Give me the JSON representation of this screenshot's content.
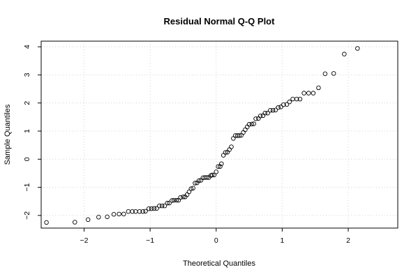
{
  "chart_data": {
    "type": "scatter",
    "title": "Residual Normal Q-Q Plot",
    "xlabel": "Theoretical Quantiles",
    "ylabel": "Sample Quantiles",
    "xlim": [
      -2.65,
      2.75
    ],
    "ylim": [
      -2.45,
      4.2
    ],
    "xticks": [
      -2,
      -1,
      0,
      1,
      2
    ],
    "yticks": [
      -2,
      -1,
      0,
      1,
      2,
      3,
      4
    ],
    "grid": true,
    "marker": "open-circle",
    "points": [
      [
        -2.57,
        -2.25
      ],
      [
        -2.14,
        -2.24
      ],
      [
        -1.94,
        -2.15
      ],
      [
        -1.78,
        -2.06
      ],
      [
        -1.65,
        -2.05
      ],
      [
        -1.55,
        -1.96
      ],
      [
        -1.47,
        -1.95
      ],
      [
        -1.4,
        -1.95
      ],
      [
        -1.33,
        -1.86
      ],
      [
        -1.27,
        -1.86
      ],
      [
        -1.22,
        -1.86
      ],
      [
        -1.16,
        -1.86
      ],
      [
        -1.11,
        -1.86
      ],
      [
        -1.07,
        -1.85
      ],
      [
        -1.02,
        -1.76
      ],
      [
        -0.98,
        -1.76
      ],
      [
        -0.94,
        -1.75
      ],
      [
        -0.9,
        -1.75
      ],
      [
        -0.86,
        -1.66
      ],
      [
        -0.82,
        -1.66
      ],
      [
        -0.78,
        -1.66
      ],
      [
        -0.74,
        -1.56
      ],
      [
        -0.71,
        -1.56
      ],
      [
        -0.67,
        -1.47
      ],
      [
        -0.64,
        -1.46
      ],
      [
        -0.6,
        -1.46
      ],
      [
        -0.57,
        -1.46
      ],
      [
        -0.54,
        -1.36
      ],
      [
        -0.5,
        -1.34
      ],
      [
        -0.47,
        -1.34
      ],
      [
        -0.44,
        -1.26
      ],
      [
        -0.41,
        -1.16
      ],
      [
        -0.38,
        -1.05
      ],
      [
        -0.35,
        -1.03
      ],
      [
        -0.32,
        -0.85
      ],
      [
        -0.29,
        -0.84
      ],
      [
        -0.26,
        -0.76
      ],
      [
        -0.23,
        -0.75
      ],
      [
        -0.2,
        -0.66
      ],
      [
        -0.17,
        -0.65
      ],
      [
        -0.14,
        -0.65
      ],
      [
        -0.11,
        -0.65
      ],
      [
        -0.08,
        -0.58
      ],
      [
        -0.06,
        -0.56
      ],
      [
        -0.03,
        -0.56
      ],
      [
        0.0,
        -0.45
      ],
      [
        0.03,
        -0.26
      ],
      [
        0.06,
        -0.26
      ],
      [
        0.08,
        -0.16
      ],
      [
        0.11,
        0.14
      ],
      [
        0.14,
        0.24
      ],
      [
        0.17,
        0.25
      ],
      [
        0.2,
        0.34
      ],
      [
        0.23,
        0.44
      ],
      [
        0.26,
        0.74
      ],
      [
        0.29,
        0.84
      ],
      [
        0.32,
        0.84
      ],
      [
        0.35,
        0.84
      ],
      [
        0.38,
        0.85
      ],
      [
        0.41,
        0.95
      ],
      [
        0.44,
        1.05
      ],
      [
        0.47,
        1.15
      ],
      [
        0.5,
        1.24
      ],
      [
        0.54,
        1.25
      ],
      [
        0.57,
        1.26
      ],
      [
        0.6,
        1.44
      ],
      [
        0.64,
        1.45
      ],
      [
        0.67,
        1.54
      ],
      [
        0.71,
        1.55
      ],
      [
        0.74,
        1.64
      ],
      [
        0.78,
        1.64
      ],
      [
        0.82,
        1.74
      ],
      [
        0.86,
        1.74
      ],
      [
        0.9,
        1.75
      ],
      [
        0.94,
        1.84
      ],
      [
        0.98,
        1.86
      ],
      [
        1.02,
        1.94
      ],
      [
        1.07,
        1.95
      ],
      [
        1.11,
        2.04
      ],
      [
        1.16,
        2.14
      ],
      [
        1.22,
        2.14
      ],
      [
        1.27,
        2.14
      ],
      [
        1.33,
        2.35
      ],
      [
        1.4,
        2.35
      ],
      [
        1.47,
        2.35
      ],
      [
        1.55,
        2.54
      ],
      [
        1.65,
        3.04
      ],
      [
        1.78,
        3.05
      ],
      [
        1.94,
        3.74
      ],
      [
        2.14,
        3.94
      ]
    ]
  }
}
